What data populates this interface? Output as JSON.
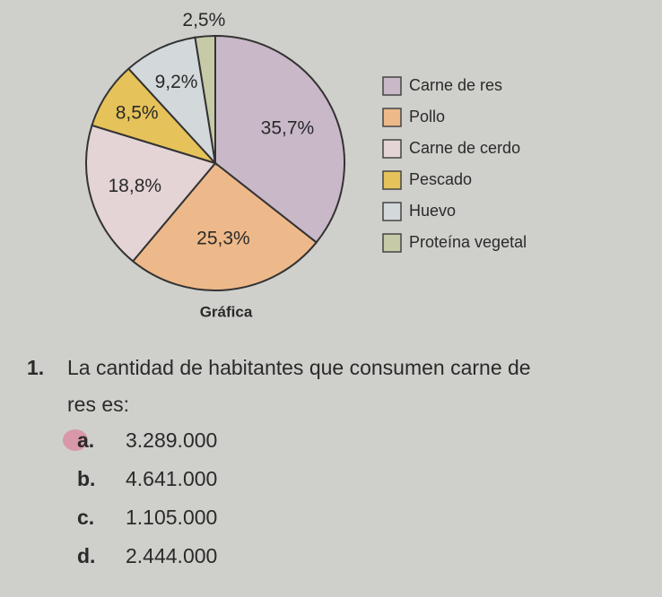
{
  "chart_data": {
    "type": "pie",
    "title": "Gráfica",
    "categories": [
      "Carne de res",
      "Pollo",
      "Carne de cerdo",
      "Pescado",
      "Huevo",
      "Proteína vegetal"
    ],
    "values": [
      35.7,
      25.3,
      18.8,
      8.5,
      9.2,
      2.5
    ],
    "value_labels": [
      "35,7%",
      "25,3%",
      "18,8%",
      "8,5%",
      "9,2%",
      "2,5%"
    ],
    "colors": [
      "#c9b8c8",
      "#eeb98a",
      "#e4d4d5",
      "#e6c25a",
      "#d3d8da",
      "#c6caa6"
    ]
  },
  "question": {
    "number": "1.",
    "lines": [
      "La cantidad de habitantes que consumen carne de",
      "res es:"
    ],
    "options": [
      {
        "letter": "a.",
        "text": "3.289.000"
      },
      {
        "letter": "b.",
        "text": "4.641.000"
      },
      {
        "letter": "c.",
        "text": "1.105.000"
      },
      {
        "letter": "d.",
        "text": "2.444.000"
      }
    ]
  }
}
